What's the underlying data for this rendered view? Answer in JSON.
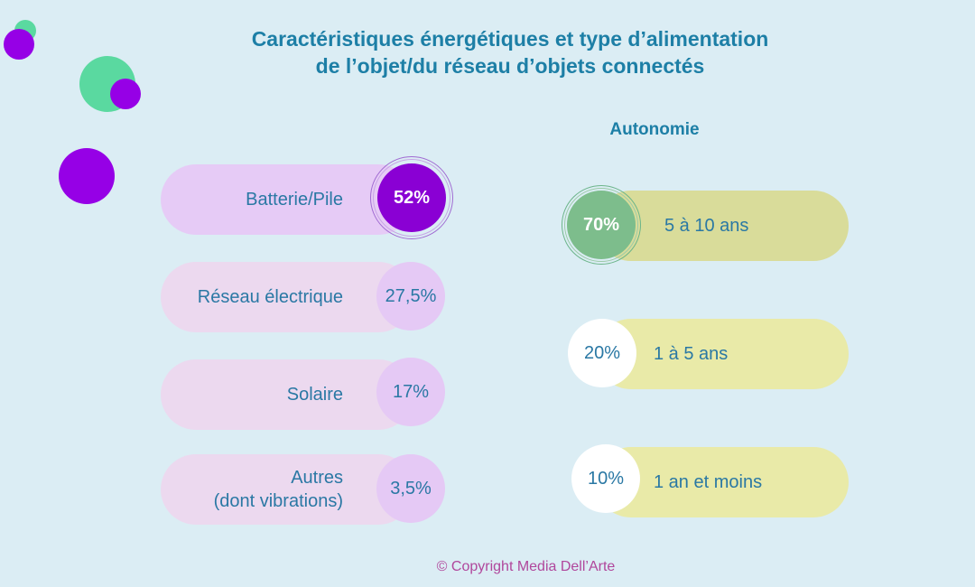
{
  "title": {
    "line1": "Caractéristiques énergétiques et type d’alimentation",
    "line2": "de l’objet/du réseau d’objets connectés"
  },
  "chart_data": [
    {
      "type": "bar",
      "title": "",
      "categories": [
        "Batterie/Pile",
        "Réseau électrique",
        "Solaire",
        "Autres (dont vibrations)"
      ],
      "category_lines": [
        [
          "Batterie/Pile"
        ],
        [
          "Réseau électrique"
        ],
        [
          "Solaire"
        ],
        [
          "Autres",
          "(dont vibrations)"
        ]
      ],
      "values": [
        52,
        27.5,
        17,
        3.5
      ],
      "value_labels": [
        "52%",
        "27,5%",
        "17%",
        "3,5%"
      ],
      "unit": "%"
    },
    {
      "type": "bar",
      "title": "Autonomie",
      "categories": [
        "5 à 10 ans",
        "1 à 5 ans",
        "1 an et moins"
      ],
      "values": [
        70,
        20,
        10
      ],
      "value_labels": [
        "70%",
        "20%",
        "10%"
      ],
      "unit": "%"
    }
  ],
  "colors": {
    "background": "#dbedf4",
    "title": "#1d7fa6",
    "text": "#2a78a4",
    "highlight_purple": "#8a00d4",
    "pill_purple_top": "#e6cbf6",
    "pill_pink": "#ecd9ef",
    "circle_lilac": "#e5c9f5",
    "highlight_green": "#7dbd8c",
    "pill_olive_top": "#d9dc9a",
    "pill_yellow": "#e9eaa8",
    "deco_green": "#5ad9a0",
    "copyright": "#b0479c"
  },
  "copyright": "© Copyright Media Dell’Arte"
}
